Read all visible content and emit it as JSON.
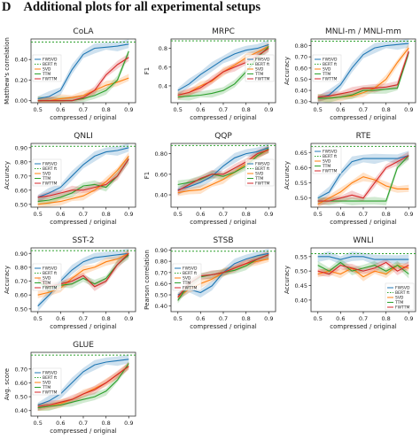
{
  "section": {
    "letter": "D",
    "title": "Additional plots for all experimental setups"
  },
  "legend_labels": [
    "FWSVD",
    "BERT ft",
    "SVD",
    "TTM",
    "FWTTM"
  ],
  "x_tick_labels": [
    "0.5",
    "0.6",
    "0.7",
    "0.8",
    "0.9"
  ],
  "colors": {
    "FWSVD": "#1f77b4",
    "BERT ft": "#2ca02c",
    "SVD": "#ff7f0e",
    "TTM": "#2ca02c",
    "FWTTM": "#d62728"
  },
  "chart_data": [
    {
      "type": "line",
      "title": "CoLA",
      "xlabel": "compressed / original",
      "ylabel": "Matthew's correlation",
      "x": [
        0.5,
        0.55,
        0.6,
        0.65,
        0.7,
        0.75,
        0.8,
        0.85,
        0.9
      ],
      "xlim": [
        0.47,
        0.93
      ],
      "ylim": [
        -0.02,
        0.6
      ],
      "yticks": [
        0.0,
        0.2,
        0.4
      ],
      "yticklabels": [
        "0.00",
        "0.20",
        "0.40"
      ],
      "reference": 0.57,
      "series": [
        {
          "name": "FWSVD",
          "values": [
            0.02,
            0.04,
            0.1,
            0.3,
            0.45,
            0.51,
            0.52,
            0.53,
            0.55
          ]
        },
        {
          "name": "SVD",
          "values": [
            0.0,
            0.0,
            0.02,
            0.03,
            0.05,
            0.1,
            0.15,
            0.18,
            0.22
          ]
        },
        {
          "name": "TTM",
          "values": [
            0.0,
            0.0,
            0.0,
            0.0,
            0.02,
            0.05,
            0.1,
            0.2,
            0.48
          ]
        },
        {
          "name": "FWTTM",
          "values": [
            0.0,
            0.0,
            0.0,
            0.0,
            0.03,
            0.1,
            0.25,
            0.35,
            0.42
          ]
        }
      ]
    },
    {
      "type": "line",
      "title": "MRPC",
      "xlabel": "compressed / original",
      "ylabel": "F1",
      "x": [
        0.5,
        0.55,
        0.6,
        0.65,
        0.7,
        0.75,
        0.8,
        0.85,
        0.9
      ],
      "xlim": [
        0.47,
        0.93
      ],
      "ylim": [
        0.22,
        0.9
      ],
      "yticks": [
        0.4,
        0.6,
        0.8
      ],
      "yticklabels": [
        "0.4",
        "0.6",
        "0.8"
      ],
      "reference": 0.88,
      "series": [
        {
          "name": "FWSVD",
          "values": [
            0.35,
            0.42,
            0.52,
            0.6,
            0.68,
            0.74,
            0.78,
            0.8,
            0.84
          ]
        },
        {
          "name": "SVD",
          "values": [
            0.3,
            0.33,
            0.4,
            0.45,
            0.55,
            0.62,
            0.7,
            0.76,
            0.82
          ]
        },
        {
          "name": "TTM",
          "values": [
            0.28,
            0.29,
            0.3,
            0.32,
            0.35,
            0.42,
            0.55,
            0.7,
            0.82
          ]
        },
        {
          "name": "FWTTM",
          "values": [
            0.3,
            0.33,
            0.38,
            0.46,
            0.55,
            0.6,
            0.65,
            0.72,
            0.8
          ]
        }
      ]
    },
    {
      "type": "line",
      "title": "MNLI-m / MNLI-mm",
      "xlabel": "compressed / original",
      "ylabel": "Accuracy",
      "x": [
        0.5,
        0.55,
        0.6,
        0.65,
        0.7,
        0.75,
        0.8,
        0.85,
        0.9
      ],
      "xlim": [
        0.47,
        0.93
      ],
      "ylim": [
        0.29,
        0.86
      ],
      "yticks": [
        0.3,
        0.4,
        0.5,
        0.6,
        0.7,
        0.8
      ],
      "yticklabels": [
        "0.30",
        "0.40",
        "0.50",
        "0.60",
        "0.70",
        "0.80"
      ],
      "reference": 0.84,
      "series": [
        {
          "name": "FWSVD",
          "values": [
            0.33,
            0.36,
            0.45,
            0.6,
            0.72,
            0.78,
            0.8,
            0.81,
            0.82
          ]
        },
        {
          "name": "SVD",
          "values": [
            0.33,
            0.33,
            0.34,
            0.35,
            0.38,
            0.42,
            0.5,
            0.65,
            0.78
          ]
        },
        {
          "name": "TTM",
          "values": [
            0.33,
            0.33,
            0.34,
            0.36,
            0.4,
            0.4,
            0.41,
            0.42,
            0.74
          ]
        },
        {
          "name": "FWTTM",
          "values": [
            0.34,
            0.35,
            0.37,
            0.39,
            0.42,
            0.42,
            0.43,
            0.45,
            0.75
          ]
        }
      ]
    },
    {
      "type": "line",
      "title": "QNLI",
      "xlabel": "compressed / original",
      "ylabel": "Accuracy",
      "x": [
        0.5,
        0.55,
        0.6,
        0.65,
        0.7,
        0.75,
        0.8,
        0.85,
        0.9
      ],
      "xlim": [
        0.47,
        0.93
      ],
      "ylim": [
        0.48,
        0.93
      ],
      "yticks": [
        0.5,
        0.6,
        0.7,
        0.8,
        0.9
      ],
      "yticklabels": [
        "0.50",
        "0.60",
        "0.70",
        "0.80",
        "0.90"
      ],
      "reference": 0.91,
      "series": [
        {
          "name": "FWSVD",
          "values": [
            0.55,
            0.58,
            0.62,
            0.7,
            0.78,
            0.84,
            0.87,
            0.88,
            0.9
          ]
        },
        {
          "name": "SVD",
          "values": [
            0.5,
            0.51,
            0.52,
            0.54,
            0.56,
            0.6,
            0.66,
            0.74,
            0.84
          ]
        },
        {
          "name": "TTM",
          "values": [
            0.52,
            0.53,
            0.55,
            0.58,
            0.63,
            0.64,
            0.62,
            0.7,
            0.82
          ]
        },
        {
          "name": "FWTTM",
          "values": [
            0.55,
            0.56,
            0.58,
            0.6,
            0.6,
            0.62,
            0.64,
            0.7,
            0.82
          ]
        }
      ]
    },
    {
      "type": "line",
      "title": "QQP",
      "xlabel": "compressed / original",
      "ylabel": "F1",
      "x": [
        0.5,
        0.55,
        0.6,
        0.65,
        0.7,
        0.75,
        0.8,
        0.85,
        0.9
      ],
      "xlim": [
        0.47,
        0.93
      ],
      "ylim": [
        0.28,
        0.9
      ],
      "yticks": [
        0.4,
        0.6,
        0.8
      ],
      "yticklabels": [
        "0.40",
        "0.60",
        "0.80"
      ],
      "reference": 0.88,
      "series": [
        {
          "name": "FWSVD",
          "values": [
            0.45,
            0.48,
            0.52,
            0.58,
            0.68,
            0.76,
            0.8,
            0.82,
            0.86
          ]
        },
        {
          "name": "SVD",
          "values": [
            0.42,
            0.44,
            0.45,
            0.5,
            0.55,
            0.62,
            0.7,
            0.78,
            0.84
          ]
        },
        {
          "name": "TTM",
          "values": [
            0.5,
            0.52,
            0.55,
            0.6,
            0.58,
            0.62,
            0.68,
            0.78,
            0.85
          ]
        },
        {
          "name": "FWTTM",
          "values": [
            0.44,
            0.5,
            0.56,
            0.6,
            0.6,
            0.66,
            0.72,
            0.8,
            0.84
          ]
        }
      ]
    },
    {
      "type": "line",
      "title": "RTE",
      "xlabel": "compressed / original",
      "ylabel": "Accuracy",
      "x": [
        0.5,
        0.55,
        0.6,
        0.65,
        0.7,
        0.75,
        0.8,
        0.85,
        0.9
      ],
      "xlim": [
        0.47,
        0.93
      ],
      "ylim": [
        0.47,
        0.68
      ],
      "yticks": [
        0.5,
        0.55,
        0.6,
        0.65
      ],
      "yticklabels": [
        "0.50",
        "0.55",
        "0.60",
        "0.65"
      ],
      "reference": 0.67,
      "series": [
        {
          "name": "FWSVD",
          "values": [
            0.5,
            0.52,
            0.58,
            0.62,
            0.63,
            0.63,
            0.63,
            0.63,
            0.64
          ]
        },
        {
          "name": "SVD",
          "values": [
            0.48,
            0.5,
            0.52,
            0.55,
            0.57,
            0.56,
            0.54,
            0.53,
            0.53
          ]
        },
        {
          "name": "TTM",
          "values": [
            0.49,
            0.49,
            0.49,
            0.49,
            0.49,
            0.49,
            0.49,
            0.6,
            0.64
          ]
        },
        {
          "name": "FWTTM",
          "values": [
            0.49,
            0.49,
            0.5,
            0.51,
            0.5,
            0.55,
            0.6,
            0.62,
            0.64
          ]
        }
      ]
    },
    {
      "type": "line",
      "title": "SST-2",
      "xlabel": "compressed / original",
      "ylabel": "Accuracy",
      "x": [
        0.5,
        0.55,
        0.6,
        0.65,
        0.7,
        0.75,
        0.8,
        0.85,
        0.9
      ],
      "xlim": [
        0.47,
        0.93
      ],
      "ylim": [
        0.48,
        0.94
      ],
      "yticks": [
        0.5,
        0.6,
        0.7,
        0.8,
        0.9
      ],
      "yticklabels": [
        "0.50",
        "0.60",
        "0.70",
        "0.80",
        "0.90"
      ],
      "reference": 0.92,
      "series": [
        {
          "name": "FWSVD",
          "values": [
            0.52,
            0.6,
            0.7,
            0.78,
            0.84,
            0.87,
            0.88,
            0.89,
            0.9
          ]
        },
        {
          "name": "SVD",
          "values": [
            0.6,
            0.62,
            0.65,
            0.72,
            0.78,
            0.8,
            0.84,
            0.86,
            0.9
          ]
        },
        {
          "name": "TTM",
          "values": [
            0.7,
            0.65,
            0.67,
            0.68,
            0.72,
            0.68,
            0.72,
            0.82,
            0.89
          ]
        },
        {
          "name": "FWTTM",
          "values": [
            0.72,
            0.66,
            0.68,
            0.7,
            0.74,
            0.66,
            0.7,
            0.82,
            0.9
          ]
        }
      ]
    },
    {
      "type": "line",
      "title": "STSB",
      "xlabel": "compressed / original",
      "ylabel": "Pearson correlation",
      "x": [
        0.5,
        0.55,
        0.6,
        0.65,
        0.7,
        0.75,
        0.8,
        0.85,
        0.9
      ],
      "xlim": [
        0.47,
        0.93
      ],
      "ylim": [
        0.35,
        0.92
      ],
      "yticks": [
        0.4,
        0.5,
        0.6,
        0.7,
        0.8,
        0.9
      ],
      "yticklabels": [
        "0.40",
        "0.50",
        "0.60",
        "0.70",
        "0.80",
        "0.90"
      ],
      "reference": 0.89,
      "series": [
        {
          "name": "FWSVD",
          "values": [
            0.5,
            0.55,
            0.52,
            0.58,
            0.7,
            0.78,
            0.82,
            0.85,
            0.87
          ]
        },
        {
          "name": "SVD",
          "values": [
            0.48,
            0.55,
            0.6,
            0.64,
            0.7,
            0.74,
            0.78,
            0.8,
            0.82
          ]
        },
        {
          "name": "TTM",
          "values": [
            0.45,
            0.6,
            0.66,
            0.68,
            0.7,
            0.72,
            0.76,
            0.82,
            0.86
          ]
        },
        {
          "name": "FWTTM",
          "values": [
            0.48,
            0.6,
            0.67,
            0.68,
            0.7,
            0.74,
            0.78,
            0.82,
            0.86
          ]
        }
      ]
    },
    {
      "type": "line",
      "title": "WNLI",
      "xlabel": "compressed / original",
      "ylabel": "Accuracy",
      "x": [
        0.5,
        0.55,
        0.6,
        0.65,
        0.7,
        0.75,
        0.8,
        0.85,
        0.9
      ],
      "xlim": [
        0.47,
        0.93
      ],
      "ylim": [
        0.36,
        0.58
      ],
      "yticks": [
        0.4,
        0.45,
        0.5,
        0.55
      ],
      "yticklabels": [
        "0.40",
        "0.45",
        "0.50",
        "0.55"
      ],
      "reference": 0.56,
      "series": [
        {
          "name": "FWSVD",
          "values": [
            0.55,
            0.55,
            0.54,
            0.55,
            0.55,
            0.54,
            0.54,
            0.54,
            0.54
          ]
        },
        {
          "name": "SVD",
          "values": [
            0.49,
            0.5,
            0.49,
            0.51,
            0.48,
            0.5,
            0.49,
            0.52,
            0.51
          ]
        },
        {
          "name": "TTM",
          "values": [
            0.52,
            0.5,
            0.53,
            0.5,
            0.51,
            0.52,
            0.5,
            0.52,
            0.49
          ]
        },
        {
          "name": "FWTTM",
          "values": [
            0.5,
            0.49,
            0.52,
            0.51,
            0.5,
            0.51,
            0.53,
            0.5,
            0.52
          ]
        }
      ]
    },
    {
      "type": "line",
      "title": "GLUE",
      "xlabel": "compressed / original",
      "ylabel": "Avg. score",
      "x": [
        0.5,
        0.55,
        0.6,
        0.65,
        0.7,
        0.75,
        0.8,
        0.85,
        0.9
      ],
      "xlim": [
        0.47,
        0.93
      ],
      "ylim": [
        0.36,
        0.82
      ],
      "yticks": [
        0.4,
        0.5,
        0.6,
        0.7
      ],
      "yticklabels": [
        "0.40",
        "0.50",
        "0.60",
        "0.70"
      ],
      "reference": 0.8,
      "series": [
        {
          "name": "FWSVD",
          "values": [
            0.44,
            0.47,
            0.52,
            0.6,
            0.68,
            0.73,
            0.75,
            0.76,
            0.77
          ]
        },
        {
          "name": "SVD",
          "values": [
            0.42,
            0.43,
            0.45,
            0.48,
            0.52,
            0.56,
            0.6,
            0.66,
            0.72
          ]
        },
        {
          "name": "TTM",
          "values": [
            0.42,
            0.43,
            0.44,
            0.46,
            0.48,
            0.5,
            0.54,
            0.62,
            0.74
          ]
        },
        {
          "name": "FWTTM",
          "values": [
            0.43,
            0.44,
            0.46,
            0.48,
            0.52,
            0.55,
            0.6,
            0.66,
            0.72
          ]
        }
      ]
    }
  ]
}
